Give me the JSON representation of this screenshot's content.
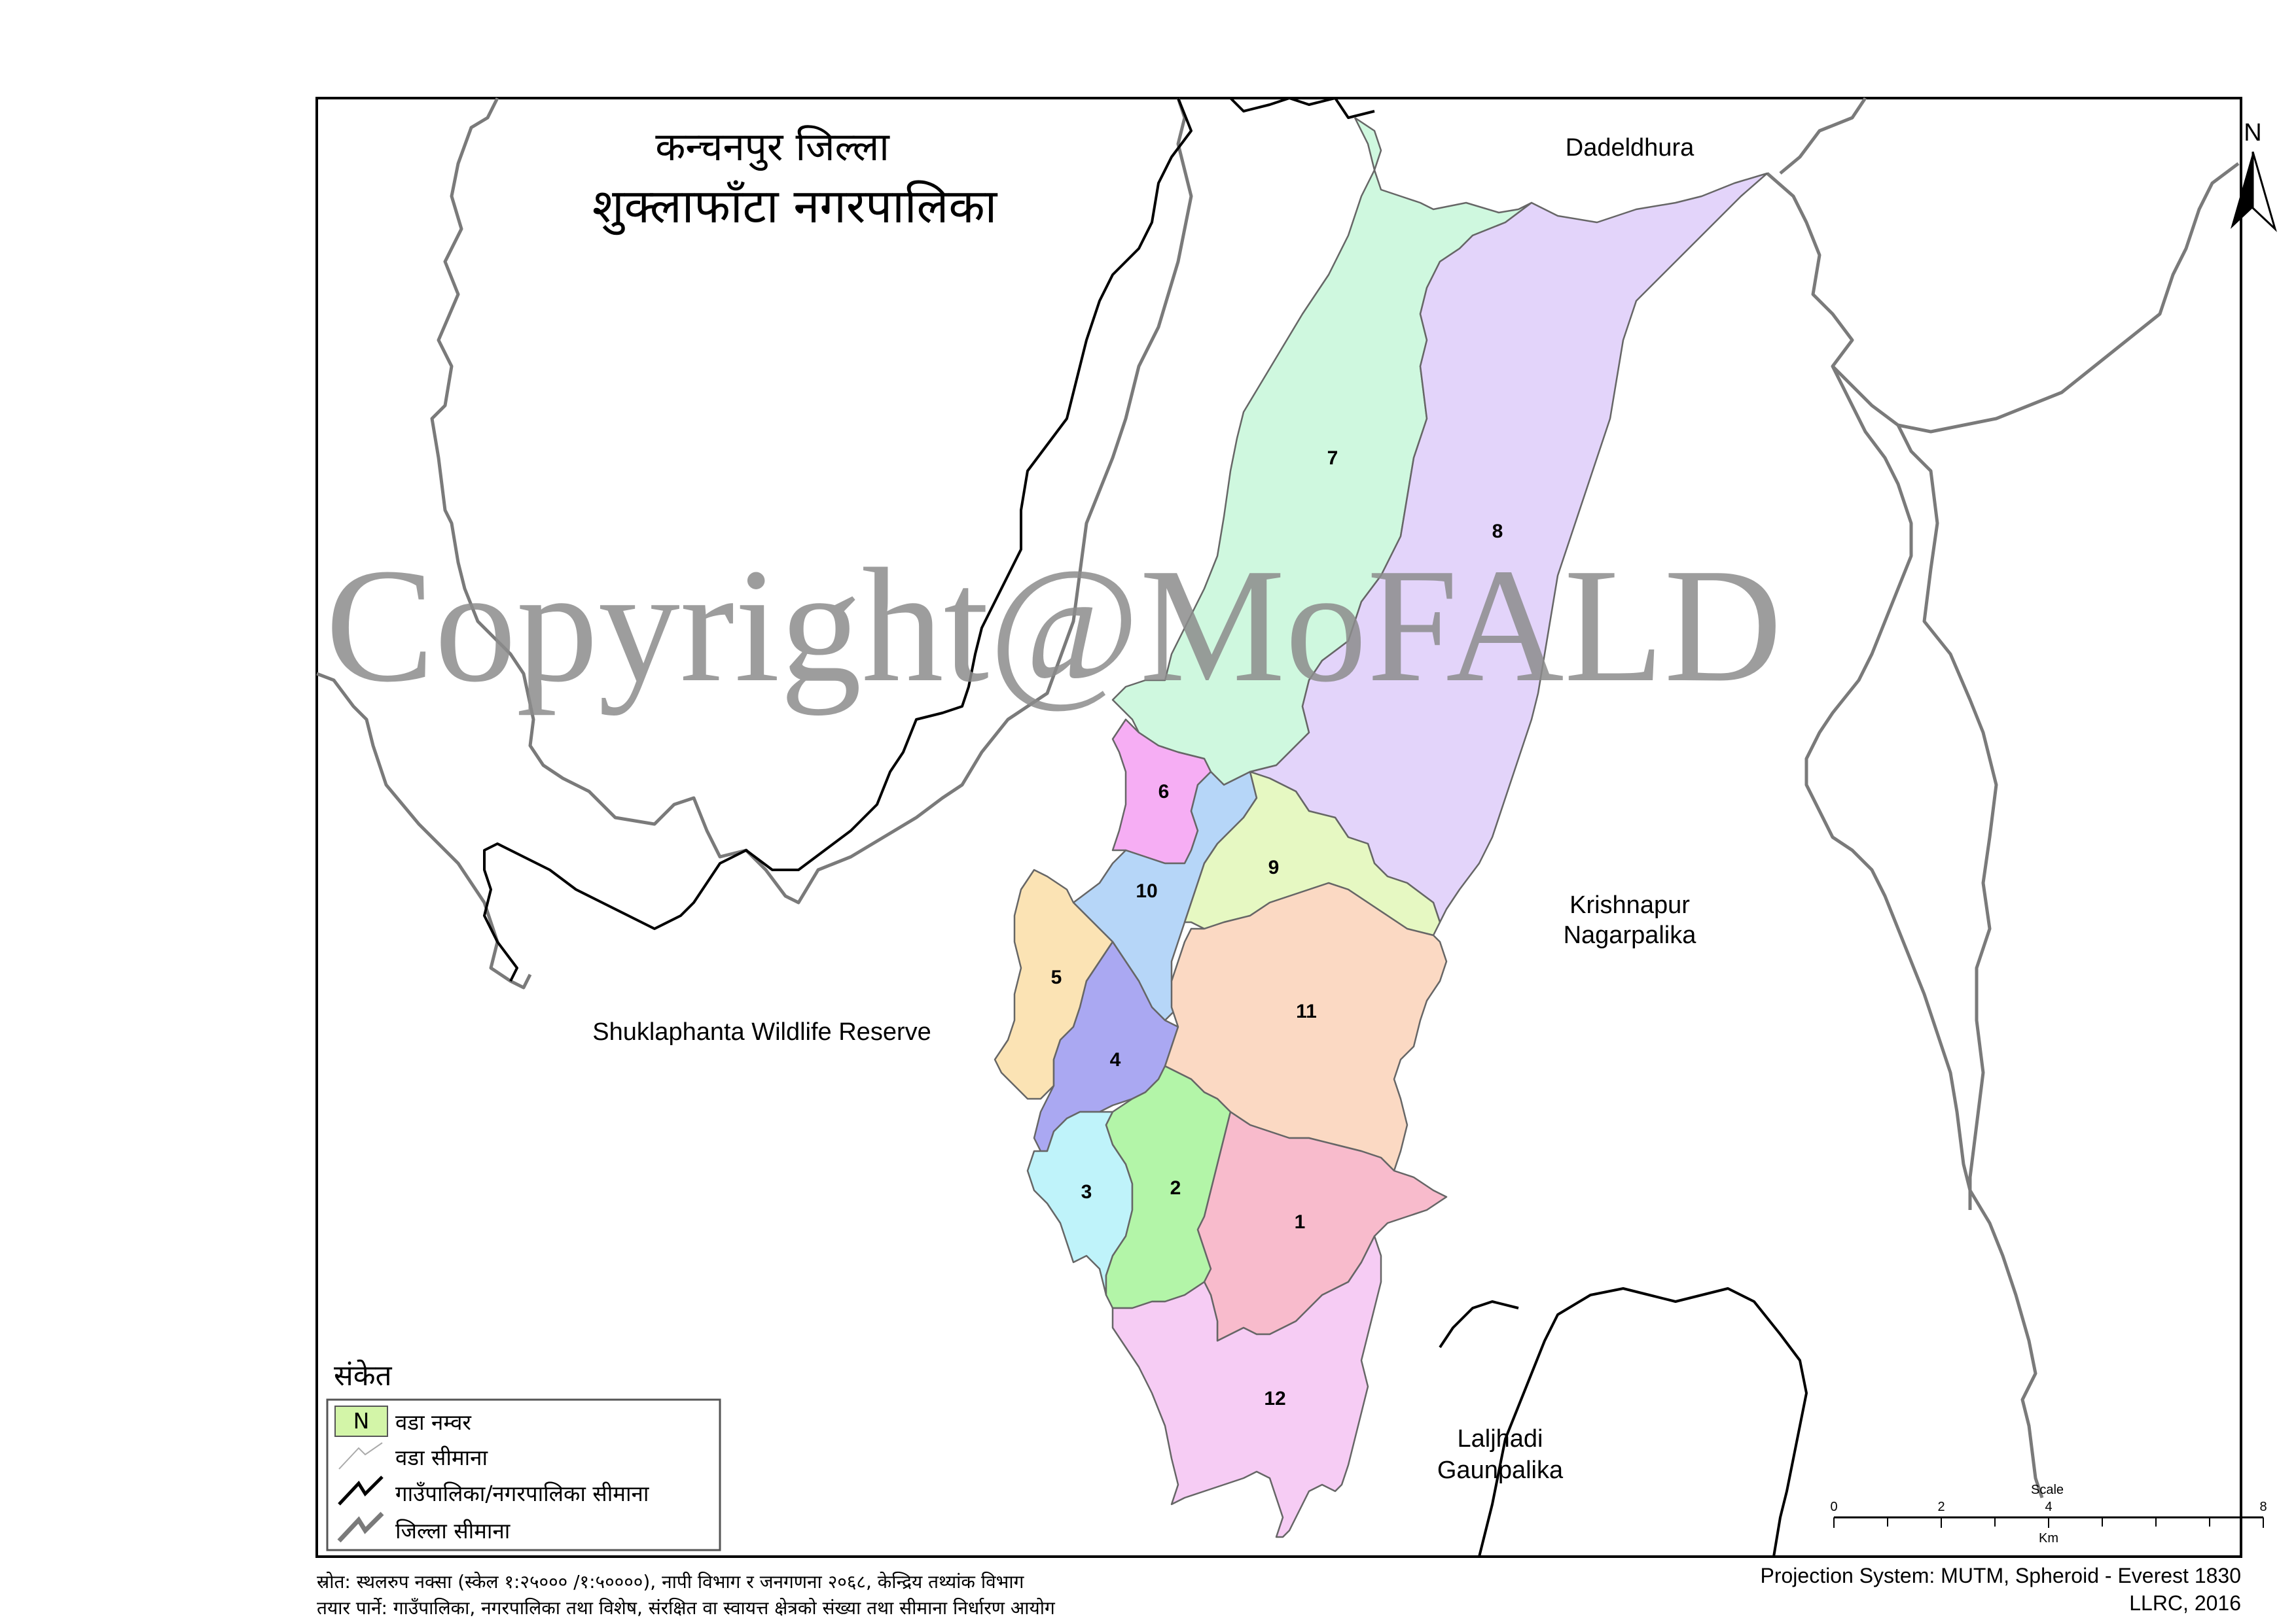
{
  "map_title": {
    "district": "कन्चनपुर जिल्ला",
    "municipality": "शुक्लाफाँटा नगरपालिका"
  },
  "watermark": "Copyright@MoFALD",
  "neighbors": {
    "dadeldhura": "Dadeldhura",
    "krishnapur_line1": "Krishnapur",
    "krishnapur_line2": "Nagarpalika",
    "shuklaphanta": "Shuklaphanta Wildlife Reserve",
    "laljhadi_line1": "Laljhadi",
    "laljhadi_line2": "Gaunpalika"
  },
  "wards": [
    {
      "id": "1",
      "label": "1",
      "color": "#f8bbcc"
    },
    {
      "id": "2",
      "label": "2",
      "color": "#b3f5a8"
    },
    {
      "id": "3",
      "label": "3",
      "color": "#bff3fa"
    },
    {
      "id": "4",
      "label": "4",
      "color": "#aaa8f2"
    },
    {
      "id": "5",
      "label": "5",
      "color": "#fbe3b4"
    },
    {
      "id": "6",
      "label": "6",
      "color": "#f6aef4"
    },
    {
      "id": "7",
      "label": "7",
      "color": "#cff8df"
    },
    {
      "id": "8",
      "label": "8",
      "color": "#e3d4fa"
    },
    {
      "id": "9",
      "label": "9",
      "color": "#e6f8c2"
    },
    {
      "id": "10",
      "label": "10",
      "color": "#b6d6f8"
    },
    {
      "id": "11",
      "label": "11",
      "color": "#fbd9c3"
    },
    {
      "id": "12",
      "label": "12",
      "color": "#f6ccf4"
    }
  ],
  "north_arrow": {
    "label": "N"
  },
  "legend": {
    "title": "संकेत",
    "ward_symbol": "N",
    "ward_symbol_color": "#d3f5a8",
    "items": [
      "वडा नम्वर",
      "वडा सीमाना",
      "गाउँपालिका/नगरपालिका सीमाना",
      "जिल्ला सीमाना"
    ]
  },
  "scale_bar": {
    "title": "Scale",
    "ticks": [
      "0",
      "2",
      "4",
      "8"
    ],
    "unit": "Km"
  },
  "footer": {
    "source": "स्रोत: स्थलरुप नक्सा (स्केल १:२५००० /१:५००००), नापी विभाग र जनगणना २०६८, केन्द्रिय तथ्यांक विभाग",
    "prepared_by": "तयार पार्ने: गाउँपालिका, नगरपालिका तथा विशेष, संरक्षित वा स्वायत्त क्षेत्रको संख्या तथा सीमाना निर्धारण आयोग",
    "projection": "Projection System: MUTM, Spheroid - Everest 1830",
    "credit": "LLRC, 2016"
  }
}
